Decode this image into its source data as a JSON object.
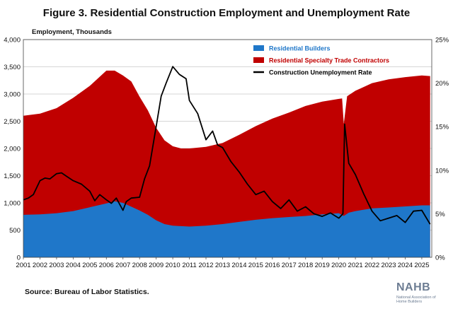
{
  "title": "Figure 3. Residential Construction Employment and Unemployment Rate",
  "source": "Source: Bureau of Labor Statistics.",
  "logo": {
    "mark": "NAHB",
    "sub": "National Association of Home Builders"
  },
  "chart_data": {
    "type": "area",
    "title": "Figure 3. Residential Construction Employment and Unemployment Rate",
    "ylabel": "Employment, Thousands",
    "ylim": [
      0,
      4000
    ],
    "yticks": [
      "0",
      "500",
      "1,000",
      "1,500",
      "2,000",
      "2,500",
      "3,000",
      "3,500",
      "4,000"
    ],
    "y2lim": [
      0,
      25
    ],
    "y2ticks": [
      "0%",
      "5%",
      "10%",
      "15%",
      "20%",
      "25%"
    ],
    "xlim": [
      2001,
      2025.6
    ],
    "xticks": [
      "2001",
      "2002",
      "2003",
      "2004",
      "2005",
      "2006",
      "2007",
      "2008",
      "2009",
      "2010",
      "2011",
      "2012",
      "2013",
      "2014",
      "2015",
      "2016",
      "2017",
      "2018",
      "2019",
      "2020",
      "2021",
      "2022",
      "2023",
      "2024",
      "2025"
    ],
    "grid": true,
    "legend_position": "top-right",
    "series": [
      {
        "name": "Residential Builders",
        "kind": "area",
        "axis": "left",
        "color": "#1f77c9",
        "points": [
          [
            2001,
            780
          ],
          [
            2002,
            790
          ],
          [
            2003,
            810
          ],
          [
            2004,
            850
          ],
          [
            2005,
            920
          ],
          [
            2006,
            990
          ],
          [
            2006.5,
            1030
          ],
          [
            2007,
            1000
          ],
          [
            2007.5,
            930
          ],
          [
            2008,
            860
          ],
          [
            2008.5,
            780
          ],
          [
            2009,
            680
          ],
          [
            2009.5,
            610
          ],
          [
            2010,
            580
          ],
          [
            2011,
            565
          ],
          [
            2012,
            580
          ],
          [
            2013,
            610
          ],
          [
            2014,
            650
          ],
          [
            2015,
            690
          ],
          [
            2016,
            720
          ],
          [
            2017,
            740
          ],
          [
            2018,
            760
          ],
          [
            2019,
            790
          ],
          [
            2020,
            810
          ],
          [
            2020.3,
            760
          ],
          [
            2020.6,
            820
          ],
          [
            2021,
            850
          ],
          [
            2022,
            900
          ],
          [
            2023,
            915
          ],
          [
            2024,
            935
          ],
          [
            2025,
            955
          ],
          [
            2025.5,
            955
          ]
        ]
      },
      {
        "name": "Residential Specialty Trade Contractors",
        "kind": "area-total",
        "axis": "left",
        "color": "#c00000",
        "points": [
          [
            2001,
            2600
          ],
          [
            2002,
            2640
          ],
          [
            2003,
            2740
          ],
          [
            2004,
            2930
          ],
          [
            2005,
            3150
          ],
          [
            2006,
            3430
          ],
          [
            2006.5,
            3430
          ],
          [
            2007,
            3340
          ],
          [
            2007.5,
            3230
          ],
          [
            2008,
            2950
          ],
          [
            2008.5,
            2700
          ],
          [
            2009,
            2380
          ],
          [
            2009.5,
            2150
          ],
          [
            2010,
            2040
          ],
          [
            2010.5,
            2000
          ],
          [
            2011,
            2000
          ],
          [
            2012,
            2030
          ],
          [
            2013,
            2100
          ],
          [
            2014,
            2250
          ],
          [
            2015,
            2410
          ],
          [
            2016,
            2550
          ],
          [
            2017,
            2660
          ],
          [
            2018,
            2780
          ],
          [
            2019,
            2860
          ],
          [
            2020,
            2910
          ],
          [
            2020.2,
            2920
          ],
          [
            2020.3,
            2450
          ],
          [
            2020.5,
            2960
          ],
          [
            2021,
            3060
          ],
          [
            2022,
            3200
          ],
          [
            2023,
            3270
          ],
          [
            2024,
            3310
          ],
          [
            2025,
            3340
          ],
          [
            2025.5,
            3330
          ]
        ]
      },
      {
        "name": "Construction Unemployment Rate",
        "kind": "line",
        "axis": "right",
        "color": "#000000",
        "points": [
          [
            2001,
            6.6
          ],
          [
            2001.3,
            6.8
          ],
          [
            2001.6,
            7.2
          ],
          [
            2002,
            8.8
          ],
          [
            2002.3,
            9.1
          ],
          [
            2002.6,
            9.0
          ],
          [
            2003,
            9.6
          ],
          [
            2003.3,
            9.7
          ],
          [
            2003.6,
            9.3
          ],
          [
            2004,
            8.8
          ],
          [
            2004.5,
            8.4
          ],
          [
            2005,
            7.6
          ],
          [
            2005.3,
            6.5
          ],
          [
            2005.6,
            7.2
          ],
          [
            2006,
            6.6
          ],
          [
            2006.3,
            6.2
          ],
          [
            2006.6,
            6.8
          ],
          [
            2007,
            5.4
          ],
          [
            2007.2,
            6.4
          ],
          [
            2007.5,
            6.8
          ],
          [
            2008,
            6.9
          ],
          [
            2008.3,
            9.0
          ],
          [
            2008.6,
            10.5
          ],
          [
            2009,
            15.0
          ],
          [
            2009.3,
            18.5
          ],
          [
            2009.6,
            20.0
          ],
          [
            2010,
            21.9
          ],
          [
            2010.4,
            21.0
          ],
          [
            2010.8,
            20.5
          ],
          [
            2011,
            18.0
          ],
          [
            2011.5,
            16.5
          ],
          [
            2012,
            13.5
          ],
          [
            2012.4,
            14.5
          ],
          [
            2012.7,
            12.9
          ],
          [
            2013,
            12.6
          ],
          [
            2013.5,
            11.0
          ],
          [
            2014,
            9.8
          ],
          [
            2014.5,
            8.4
          ],
          [
            2015,
            7.2
          ],
          [
            2015.5,
            7.6
          ],
          [
            2016,
            6.4
          ],
          [
            2016.5,
            5.6
          ],
          [
            2017,
            6.6
          ],
          [
            2017.5,
            5.3
          ],
          [
            2018,
            5.8
          ],
          [
            2018.5,
            5.0
          ],
          [
            2019,
            4.7
          ],
          [
            2019.5,
            5.1
          ],
          [
            2020,
            4.5
          ],
          [
            2020.25,
            5.0
          ],
          [
            2020.35,
            15.3
          ],
          [
            2020.6,
            10.8
          ],
          [
            2021,
            9.5
          ],
          [
            2021.5,
            7.3
          ],
          [
            2022,
            5.3
          ],
          [
            2022.5,
            4.2
          ],
          [
            2023,
            4.5
          ],
          [
            2023.5,
            4.8
          ],
          [
            2024,
            4.0
          ],
          [
            2024.5,
            5.3
          ],
          [
            2025,
            5.4
          ],
          [
            2025.5,
            3.8
          ]
        ]
      }
    ]
  }
}
